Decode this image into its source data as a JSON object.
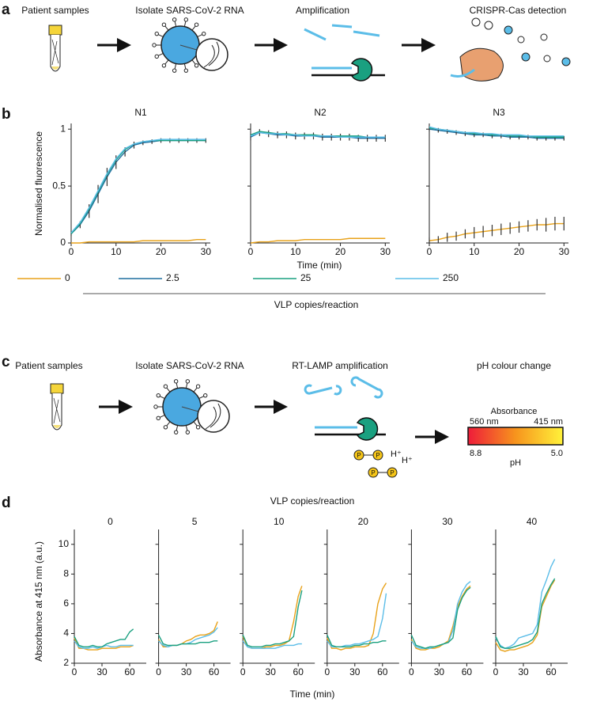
{
  "panel_labels": [
    "a",
    "b",
    "c",
    "d"
  ],
  "panel_a": {
    "steps": [
      "Patient samples",
      "Isolate SARS-CoV-2 RNA",
      "Amplification",
      "CRISPR-Cas detection"
    ]
  },
  "panel_b": {
    "ylabel": "Normalised fluorescence",
    "xlabel": "Time (min)",
    "legend_title": "VLP copies/reaction"
  },
  "panel_c": {
    "steps": [
      "Patient samples",
      "Isolate SARS-CoV-2 RNA",
      "RT-LAMP amplification",
      "pH colour change"
    ],
    "scale": {
      "title": "Absorbance",
      "left_wavelength": "560 nm",
      "right_wavelength": "415 nm",
      "left_ph": "8.8",
      "right_ph": "5.0",
      "axis_label": "pH"
    },
    "ion": "H⁺",
    "phosphate": "P"
  },
  "panel_d": {
    "title": "VLP copies/reaction",
    "ylabel": "Absorbance at 415 nm (a.u.)",
    "xlabel": "Time (min)"
  },
  "chart_data": [
    {
      "type": "line",
      "title": "N1",
      "x": [
        0,
        2,
        4,
        6,
        8,
        10,
        12,
        14,
        16,
        18,
        20,
        22,
        24,
        26,
        28,
        30
      ],
      "xlim": [
        0,
        31
      ],
      "xticks": [
        0,
        10,
        20,
        30
      ],
      "ylim": [
        0,
        1.05
      ],
      "yticks": [
        0,
        0.5,
        1
      ],
      "series": [
        {
          "name": "0",
          "color": "#e8a21a",
          "values": [
            0,
            0,
            0.01,
            0.01,
            0.01,
            0.01,
            0.01,
            0.01,
            0.02,
            0.02,
            0.02,
            0.02,
            0.02,
            0.02,
            0.03,
            0.03
          ]
        },
        {
          "name": "2.5",
          "color": "#1f6f9f",
          "values": [
            0.08,
            0.16,
            0.28,
            0.43,
            0.58,
            0.71,
            0.8,
            0.86,
            0.88,
            0.89,
            0.9,
            0.9,
            0.9,
            0.9,
            0.9,
            0.9
          ],
          "errors": [
            0.02,
            0.03,
            0.06,
            0.08,
            0.08,
            0.06,
            0.04,
            0.03,
            0.02,
            0.02,
            0.02,
            0.02,
            0.02,
            0.02,
            0.02,
            0.02
          ]
        },
        {
          "name": "25",
          "color": "#1aa080",
          "values": [
            0.08,
            0.17,
            0.3,
            0.45,
            0.6,
            0.73,
            0.82,
            0.87,
            0.89,
            0.9,
            0.9,
            0.9,
            0.9,
            0.9,
            0.9,
            0.9
          ]
        },
        {
          "name": "250",
          "color": "#5bbde8",
          "values": [
            0.09,
            0.18,
            0.31,
            0.46,
            0.61,
            0.74,
            0.83,
            0.87,
            0.89,
            0.9,
            0.91,
            0.91,
            0.91,
            0.91,
            0.91,
            0.91
          ]
        }
      ]
    },
    {
      "type": "line",
      "title": "N2",
      "x": [
        0,
        2,
        4,
        6,
        8,
        10,
        12,
        14,
        16,
        18,
        20,
        22,
        24,
        26,
        28,
        30
      ],
      "xlim": [
        0,
        31
      ],
      "xticks": [
        0,
        10,
        20,
        30
      ],
      "ylim": [
        0,
        1.05
      ],
      "yticks": [
        0,
        0.5,
        1
      ],
      "ytick_labels": false,
      "series": [
        {
          "color": "#e8a21a",
          "values": [
            0,
            0.01,
            0.01,
            0.02,
            0.02,
            0.02,
            0.03,
            0.03,
            0.03,
            0.03,
            0.03,
            0.04,
            0.04,
            0.04,
            0.04,
            0.04
          ]
        },
        {
          "color": "#1f6f9f",
          "values": [
            0.93,
            0.97,
            0.96,
            0.95,
            0.95,
            0.94,
            0.94,
            0.94,
            0.93,
            0.93,
            0.93,
            0.93,
            0.92,
            0.92,
            0.92,
            0.92
          ],
          "errors": [
            0.03,
            0.03,
            0.03,
            0.03,
            0.03,
            0.03,
            0.03,
            0.03,
            0.03,
            0.03,
            0.03,
            0.03,
            0.03,
            0.03,
            0.03,
            0.03
          ]
        },
        {
          "color": "#1aa080",
          "values": [
            0.95,
            0.98,
            0.97,
            0.96,
            0.96,
            0.95,
            0.95,
            0.95,
            0.94,
            0.94,
            0.94,
            0.94,
            0.94,
            0.93,
            0.93,
            0.93
          ]
        },
        {
          "color": "#5bbde8",
          "values": [
            0.94,
            0.97,
            0.96,
            0.96,
            0.95,
            0.95,
            0.94,
            0.94,
            0.94,
            0.94,
            0.93,
            0.93,
            0.93,
            0.93,
            0.93,
            0.93
          ]
        }
      ]
    },
    {
      "type": "line",
      "title": "N3",
      "x": [
        0,
        2,
        4,
        6,
        8,
        10,
        12,
        14,
        16,
        18,
        20,
        22,
        24,
        26,
        28,
        30
      ],
      "xlim": [
        0,
        31
      ],
      "xticks": [
        0,
        10,
        20,
        30
      ],
      "ylim": [
        0,
        1.05
      ],
      "yticks": [
        0,
        0.5,
        1
      ],
      "ytick_labels": false,
      "series": [
        {
          "color": "#e8a21a",
          "values": [
            0.02,
            0.03,
            0.05,
            0.06,
            0.08,
            0.09,
            0.1,
            0.11,
            0.12,
            0.13,
            0.14,
            0.15,
            0.16,
            0.16,
            0.17,
            0.17
          ],
          "errors": [
            0.03,
            0.03,
            0.04,
            0.04,
            0.04,
            0.05,
            0.05,
            0.05,
            0.05,
            0.05,
            0.05,
            0.05,
            0.05,
            0.06,
            0.06,
            0.06
          ]
        },
        {
          "color": "#1f6f9f",
          "values": [
            1,
            0.99,
            0.98,
            0.97,
            0.96,
            0.95,
            0.95,
            0.94,
            0.94,
            0.93,
            0.93,
            0.93,
            0.92,
            0.92,
            0.92,
            0.92
          ],
          "errors": [
            0.02,
            0.02,
            0.02,
            0.02,
            0.02,
            0.02,
            0.02,
            0.02,
            0.02,
            0.02,
            0.02,
            0.02,
            0.02,
            0.02,
            0.02,
            0.02
          ]
        },
        {
          "color": "#1aa080",
          "values": [
            1.01,
            1,
            0.99,
            0.98,
            0.97,
            0.96,
            0.96,
            0.95,
            0.95,
            0.94,
            0.94,
            0.94,
            0.93,
            0.93,
            0.93,
            0.93
          ]
        },
        {
          "color": "#5bbde8",
          "values": [
            1.02,
            1,
            0.99,
            0.98,
            0.97,
            0.97,
            0.96,
            0.96,
            0.95,
            0.95,
            0.95,
            0.94,
            0.94,
            0.94,
            0.94,
            0.94
          ]
        }
      ]
    },
    {
      "type": "line",
      "title": "0",
      "x": [
        0,
        5,
        10,
        15,
        20,
        25,
        30,
        35,
        40,
        45,
        50,
        55,
        60,
        64
      ],
      "xlim": [
        0,
        78
      ],
      "xticks": [
        0,
        30,
        60
      ],
      "ylim": [
        2,
        11
      ],
      "yticks": [
        2,
        4,
        6,
        8,
        10
      ],
      "series": [
        {
          "color": "#e8a21a",
          "values": [
            3.7,
            3,
            3,
            2.9,
            2.9,
            2.9,
            3,
            3,
            3,
            3,
            3.1,
            3.1,
            3.1,
            3.2
          ]
        },
        {
          "color": "#5bbde8",
          "values": [
            3.5,
            3.1,
            3,
            3,
            3.1,
            3,
            3.1,
            3.2,
            3.1,
            3.1,
            3.2,
            3.2,
            3.2,
            3.2
          ]
        },
        {
          "color": "#1aa080",
          "values": [
            3.8,
            3.2,
            3.1,
            3.1,
            3.2,
            3.1,
            3.1,
            3.3,
            3.4,
            3.5,
            3.6,
            3.6,
            4.1,
            4.3
          ]
        }
      ]
    },
    {
      "type": "line",
      "title": "5",
      "x": [
        0,
        5,
        10,
        15,
        20,
        25,
        30,
        35,
        40,
        45,
        50,
        55,
        60,
        64
      ],
      "xlim": [
        0,
        78
      ],
      "xticks": [
        0,
        30,
        60
      ],
      "ylim": [
        2,
        11
      ],
      "yticks": [
        2,
        4,
        6,
        8,
        10
      ],
      "ytick_labels": false,
      "series": [
        {
          "color": "#e8a21a",
          "values": [
            3.6,
            3.1,
            3.1,
            3.2,
            3.2,
            3.3,
            3.5,
            3.6,
            3.8,
            3.9,
            3.9,
            4,
            4.2,
            4.8
          ]
        },
        {
          "color": "#5bbde8",
          "values": [
            3.5,
            3.2,
            3.1,
            3.2,
            3.2,
            3.3,
            3.3,
            3.4,
            3.6,
            3.7,
            3.8,
            3.9,
            4.1,
            4.4
          ]
        },
        {
          "color": "#1aa080",
          "values": [
            3.9,
            3.3,
            3.2,
            3.2,
            3.2,
            3.3,
            3.3,
            3.3,
            3.3,
            3.4,
            3.4,
            3.4,
            3.5,
            3.5
          ]
        }
      ]
    },
    {
      "type": "line",
      "title": "10",
      "x": [
        0,
        5,
        10,
        15,
        20,
        25,
        30,
        35,
        40,
        45,
        50,
        55,
        60,
        64
      ],
      "xlim": [
        0,
        78
      ],
      "xticks": [
        0,
        30,
        60
      ],
      "ylim": [
        2,
        11
      ],
      "yticks": [
        2,
        4,
        6,
        8,
        10
      ],
      "ytick_labels": false,
      "series": [
        {
          "color": "#e8a21a",
          "values": [
            3.8,
            3.1,
            3,
            3,
            3,
            3.1,
            3.1,
            3.2,
            3.2,
            3.3,
            3.5,
            4.8,
            6.5,
            7.2
          ]
        },
        {
          "color": "#5bbde8",
          "values": [
            3.5,
            3.1,
            3,
            3,
            3,
            3,
            3,
            3,
            3.1,
            3.2,
            3.2,
            3.2,
            3.3,
            3.3
          ]
        },
        {
          "color": "#1aa080",
          "values": [
            3.9,
            3.2,
            3.1,
            3.1,
            3.1,
            3.2,
            3.2,
            3.3,
            3.3,
            3.4,
            3.5,
            3.8,
            5.8,
            6.9
          ]
        }
      ]
    },
    {
      "type": "line",
      "title": "20",
      "x": [
        0,
        5,
        10,
        15,
        20,
        25,
        30,
        35,
        40,
        45,
        50,
        55,
        60,
        64
      ],
      "xlim": [
        0,
        78
      ],
      "xticks": [
        0,
        30,
        60
      ],
      "ylim": [
        2,
        11
      ],
      "yticks": [
        2,
        4,
        6,
        8,
        10
      ],
      "ytick_labels": false,
      "series": [
        {
          "color": "#e8a21a",
          "values": [
            3.7,
            3,
            3,
            2.9,
            3,
            3,
            3.1,
            3.1,
            3.1,
            3.2,
            4,
            6,
            7,
            7.4
          ]
        },
        {
          "color": "#5bbde8",
          "values": [
            3.5,
            3.1,
            3.1,
            3.1,
            3.2,
            3.2,
            3.3,
            3.3,
            3.4,
            3.5,
            3.6,
            3.8,
            5,
            6.7
          ]
        },
        {
          "color": "#1aa080",
          "values": [
            3.9,
            3.2,
            3.1,
            3.1,
            3.1,
            3.1,
            3.2,
            3.2,
            3.3,
            3.3,
            3.4,
            3.4,
            3.5,
            3.5
          ]
        }
      ]
    },
    {
      "type": "line",
      "title": "30",
      "x": [
        0,
        5,
        10,
        15,
        20,
        25,
        30,
        35,
        40,
        45,
        50,
        55,
        60,
        64
      ],
      "xlim": [
        0,
        78
      ],
      "xticks": [
        0,
        30,
        60
      ],
      "ylim": [
        2,
        11
      ],
      "yticks": [
        2,
        4,
        6,
        8,
        10
      ],
      "ytick_labels": false,
      "series": [
        {
          "color": "#e8a21a",
          "values": [
            3.6,
            3,
            2.9,
            2.9,
            3,
            3,
            3.1,
            3.3,
            3.5,
            4.5,
            5.8,
            6.5,
            7,
            7.2
          ]
        },
        {
          "color": "#5bbde8",
          "values": [
            3.5,
            3.1,
            3,
            3,
            3,
            3.1,
            3.2,
            3.3,
            3.4,
            4.2,
            6,
            6.8,
            7.3,
            7.5
          ]
        },
        {
          "color": "#1aa080",
          "values": [
            3.9,
            3.2,
            3.1,
            3,
            3.1,
            3.1,
            3.2,
            3.3,
            3.4,
            3.7,
            5.6,
            6.4,
            6.9,
            7.1
          ]
        }
      ]
    },
    {
      "type": "line",
      "title": "40",
      "x": [
        0,
        5,
        10,
        15,
        20,
        25,
        30,
        35,
        40,
        45,
        50,
        55,
        60,
        64
      ],
      "xlim": [
        0,
        78
      ],
      "xticks": [
        0,
        30,
        60
      ],
      "ylim": [
        2,
        11
      ],
      "yticks": [
        2,
        4,
        6,
        8,
        10
      ],
      "ytick_labels": false,
      "series": [
        {
          "color": "#e8a21a",
          "values": [
            3.4,
            2.9,
            2.8,
            2.9,
            2.9,
            3,
            3.1,
            3.2,
            3.4,
            3.9,
            5.8,
            6.5,
            7.2,
            7.6
          ]
        },
        {
          "color": "#5bbde8",
          "values": [
            3.7,
            3.2,
            3,
            3.1,
            3.3,
            3.7,
            3.8,
            3.9,
            4,
            4.6,
            6.8,
            7.6,
            8.5,
            9
          ]
        },
        {
          "color": "#1aa080",
          "values": [
            3.8,
            3.1,
            3,
            3,
            3.1,
            3.2,
            3.3,
            3.4,
            3.6,
            4.1,
            6,
            6.7,
            7.3,
            7.7
          ]
        }
      ]
    }
  ]
}
